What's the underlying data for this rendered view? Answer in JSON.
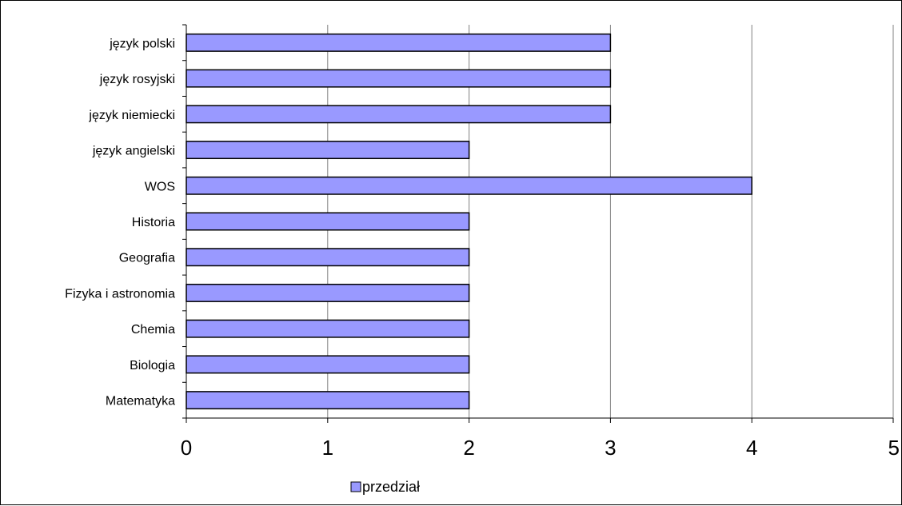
{
  "chart_data": {
    "type": "bar",
    "orientation": "horizontal",
    "categories": [
      "język polski",
      "język rosyjski",
      "język niemiecki",
      "język angielski",
      "WOS",
      "Historia",
      "Geografia",
      "Fizyka i astronomia",
      "Chemia",
      "Biologia",
      "Matematyka"
    ],
    "series": [
      {
        "name": "przedział",
        "values": [
          3,
          3,
          3,
          2,
          4,
          2,
          2,
          2,
          2,
          2,
          2
        ],
        "color": "#9999ff"
      }
    ],
    "x_ticks": [
      "0",
      "1",
      "2",
      "3",
      "4",
      "5"
    ],
    "xlim": [
      0,
      5
    ],
    "grid": "vertical",
    "legend_position": "bottom",
    "bar_outline_color": "#000000",
    "gridline_color": "#808080"
  }
}
